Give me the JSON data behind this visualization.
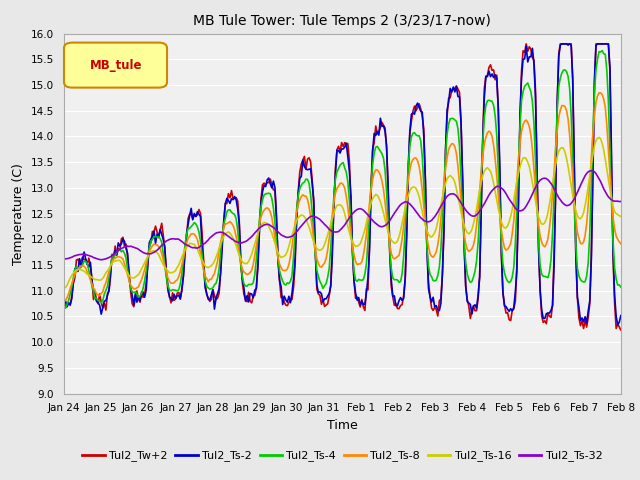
{
  "title": "MB Tule Tower: Tule Temps 2 (3/23/17-now)",
  "xlabel": "Time",
  "ylabel": "Temperature (C)",
  "ylim": [
    9.0,
    16.0
  ],
  "yticks": [
    9.0,
    9.5,
    10.0,
    10.5,
    11.0,
    11.5,
    12.0,
    12.5,
    13.0,
    13.5,
    14.0,
    14.5,
    15.0,
    15.5,
    16.0
  ],
  "x_tick_labels": [
    "Jan 24",
    "Jan 25",
    "Jan 26",
    "Jan 27",
    "Jan 28",
    "Jan 29",
    "Jan 30",
    "Jan 31",
    "Feb 1",
    "Feb 2",
    "Feb 3",
    "Feb 4",
    "Feb 5",
    "Feb 6",
    "Feb 7",
    "Feb 8"
  ],
  "series": {
    "Tul2_Tw+2": {
      "color": "#cc0000",
      "lw": 1.2
    },
    "Tul2_Ts-2": {
      "color": "#0000cc",
      "lw": 1.2
    },
    "Tul2_Ts-4": {
      "color": "#00cc00",
      "lw": 1.2
    },
    "Tul2_Ts-8": {
      "color": "#ff8800",
      "lw": 1.2
    },
    "Tul2_Ts-16": {
      "color": "#cccc00",
      "lw": 1.2
    },
    "Tul2_Ts-32": {
      "color": "#8800cc",
      "lw": 1.2
    }
  },
  "legend_box_color": "#ffff99",
  "legend_box_edge": "#cc8800",
  "legend_label": "MB_tule",
  "background_color": "#e8e8e8",
  "plot_bg_color": "#f0f0f0",
  "grid_color": "#ffffff"
}
